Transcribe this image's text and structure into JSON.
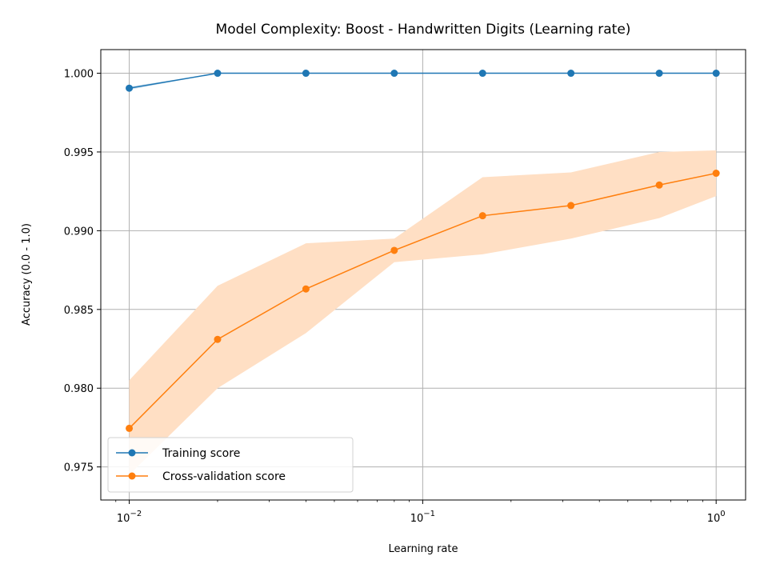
{
  "chart_data": {
    "type": "line",
    "title": "Model Complexity: Boost - Handwritten Digits (Learning rate)",
    "xlabel": "Learning rate",
    "ylabel": "Accuracy (0.0 - 1.0)",
    "xscale": "log",
    "xlim": [
      0.008,
      1.26
    ],
    "ylim": [
      0.9729,
      1.0015
    ],
    "grid": true,
    "legend_position": "lower-left",
    "x_ticks": [
      {
        "value": 0.01,
        "base": "10",
        "exp": "−2"
      },
      {
        "value": 0.1,
        "base": "10",
        "exp": "−1"
      },
      {
        "value": 1,
        "base": "10",
        "exp": "0"
      }
    ],
    "y_ticks": [
      {
        "value": 0.975,
        "label": "0.975"
      },
      {
        "value": 0.98,
        "label": "0.980"
      },
      {
        "value": 0.985,
        "label": "0.985"
      },
      {
        "value": 0.99,
        "label": "0.990"
      },
      {
        "value": 0.995,
        "label": "0.995"
      },
      {
        "value": 1.0,
        "label": "1.000"
      }
    ],
    "x": [
      0.01,
      0.02,
      0.04,
      0.08,
      0.16,
      0.32,
      0.64,
      1.0
    ],
    "series": [
      {
        "name": "Training score",
        "color": "#1f77b4",
        "values": [
          0.99905,
          1.0,
          1.0,
          1.0,
          1.0,
          1.0,
          1.0,
          1.0
        ],
        "lower": [
          0.99895,
          1.0,
          1.0,
          1.0,
          1.0,
          1.0,
          1.0,
          1.0
        ],
        "upper": [
          0.99915,
          1.0,
          1.0,
          1.0,
          1.0,
          1.0,
          1.0,
          1.0
        ]
      },
      {
        "name": "Cross-validation score",
        "color": "#ff7f0e",
        "band_color": "#ffdfc4",
        "values": [
          0.97745,
          0.9831,
          0.9863,
          0.98875,
          0.99095,
          0.9916,
          0.9929,
          0.99365
        ],
        "lower": [
          0.9745,
          0.98,
          0.9835,
          0.988,
          0.9885,
          0.9895,
          0.9908,
          0.9922
        ],
        "upper": [
          0.9805,
          0.9865,
          0.9892,
          0.9895,
          0.9934,
          0.9937,
          0.995,
          0.9951
        ]
      }
    ]
  }
}
